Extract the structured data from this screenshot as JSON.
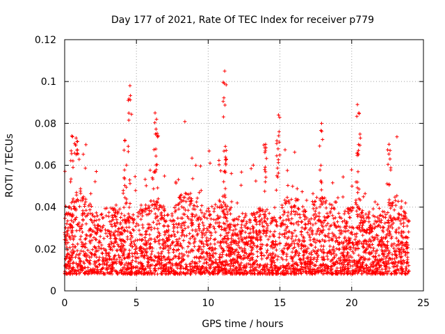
{
  "chart_data": {
    "type": "scatter",
    "title": "Day 177 of 2021, Rate Of TEC Index for receiver p779",
    "xlabel": "GPS time / hours",
    "ylabel": "ROTI / TECUs",
    "xlim": [
      0,
      25
    ],
    "ylim": [
      0,
      0.12
    ],
    "xticks": [
      0,
      5,
      10,
      15,
      20,
      25
    ],
    "xtick_labels": [
      "0",
      "5",
      "10",
      "15",
      "20",
      "25"
    ],
    "yticks": [
      0,
      0.02,
      0.04,
      0.06,
      0.08,
      0.1,
      0.12
    ],
    "ytick_labels": [
      "0",
      "0.02",
      "0.04",
      "0.06",
      "0.08",
      "0.1",
      "0.12"
    ],
    "grid": true,
    "marker": "+",
    "series": [
      {
        "name": "ROTI",
        "color": "#ff0000",
        "x_range": [
          0,
          24
        ],
        "typical_band": [
          0.008,
          0.03
        ],
        "outliers": [
          {
            "x": 0.5,
            "y": 0.074
          },
          {
            "x": 0.8,
            "y": 0.073
          },
          {
            "x": 4.2,
            "y": 0.072
          },
          {
            "x": 4.55,
            "y": 0.098
          },
          {
            "x": 6.3,
            "y": 0.085
          },
          {
            "x": 6.4,
            "y": 0.082
          },
          {
            "x": 11.15,
            "y": 0.105
          },
          {
            "x": 11.2,
            "y": 0.069
          },
          {
            "x": 14.0,
            "y": 0.07
          },
          {
            "x": 14.9,
            "y": 0.084
          },
          {
            "x": 17.9,
            "y": 0.08
          },
          {
            "x": 20.4,
            "y": 0.089
          },
          {
            "x": 20.5,
            "y": 0.085
          },
          {
            "x": 22.6,
            "y": 0.07
          }
        ]
      }
    ]
  }
}
